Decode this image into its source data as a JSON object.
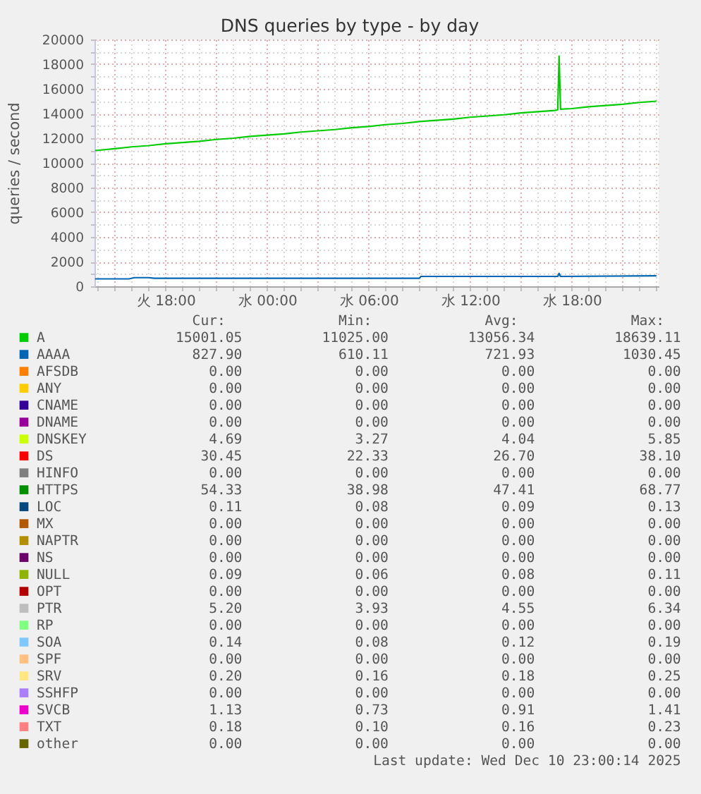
{
  "chart_data": [
    {
      "type": "line",
      "title": "DNS queries by type - by day",
      "ylabel": "queries / second",
      "xlim": [
        "2025-12-09T13:48",
        "2025-12-10T23:08"
      ],
      "xticks": [
        {
          "value": "2025-12-09T14:00",
          "label": null
        },
        {
          "value": "2025-12-09T15:00",
          "label": null
        },
        {
          "value": "2025-12-09T16:00",
          "label": null
        },
        {
          "value": "2025-12-09T17:00",
          "label": null
        },
        {
          "value": "2025-12-09T18:00",
          "label": "火 18:00"
        },
        {
          "value": "2025-12-09T19:00",
          "label": null
        },
        {
          "value": "2025-12-09T20:00",
          "label": null
        },
        {
          "value": "2025-12-09T21:00",
          "label": null
        },
        {
          "value": "2025-12-09T22:00",
          "label": null
        },
        {
          "value": "2025-12-09T23:00",
          "label": null
        },
        {
          "value": "2025-12-10T00:00",
          "label": "水 00:00"
        },
        {
          "value": "2025-12-10T01:00",
          "label": null
        },
        {
          "value": "2025-12-10T02:00",
          "label": null
        },
        {
          "value": "2025-12-10T03:00",
          "label": null
        },
        {
          "value": "2025-12-10T04:00",
          "label": null
        },
        {
          "value": "2025-12-10T05:00",
          "label": null
        },
        {
          "value": "2025-12-10T06:00",
          "label": "水 06:00"
        },
        {
          "value": "2025-12-10T07:00",
          "label": null
        },
        {
          "value": "2025-12-10T08:00",
          "label": null
        },
        {
          "value": "2025-12-10T09:00",
          "label": null
        },
        {
          "value": "2025-12-10T10:00",
          "label": null
        },
        {
          "value": "2025-12-10T11:00",
          "label": null
        },
        {
          "value": "2025-12-10T12:00",
          "label": "水 12:00"
        },
        {
          "value": "2025-12-10T13:00",
          "label": null
        },
        {
          "value": "2025-12-10T14:00",
          "label": null
        },
        {
          "value": "2025-12-10T15:00",
          "label": null
        },
        {
          "value": "2025-12-10T16:00",
          "label": null
        },
        {
          "value": "2025-12-10T17:00",
          "label": null
        },
        {
          "value": "2025-12-10T18:00",
          "label": "水 18:00"
        },
        {
          "value": "2025-12-10T19:00",
          "label": null
        },
        {
          "value": "2025-12-10T20:00",
          "label": null
        },
        {
          "value": "2025-12-10T21:00",
          "label": null
        },
        {
          "value": "2025-12-10T22:00",
          "label": null
        },
        {
          "value": "2025-12-10T23:00",
          "label": null
        }
      ],
      "ylim": [
        0,
        20000
      ],
      "yticks": [
        0,
        {
          "value": 1000,
          "label": null
        },
        2000,
        {
          "value": 3000,
          "label": null
        },
        4000,
        {
          "value": 5000,
          "label": null
        },
        6000,
        {
          "value": 7000,
          "label": null
        },
        8000,
        {
          "value": 9000,
          "label": null
        },
        10000,
        {
          "value": 11000,
          "label": null
        },
        12000,
        {
          "value": 13000,
          "label": null
        },
        14000,
        {
          "value": 15000,
          "label": null
        },
        16000,
        {
          "value": 17000,
          "label": null
        },
        18000,
        {
          "value": 19000,
          "label": null
        },
        20000
      ],
      "grid": true,
      "legend": "bottom",
      "series": [
        {
          "name": "A",
          "color": "#00cc00",
          "x": [
            "2025-12-09T13:50",
            "2025-12-09T15:00",
            "2025-12-09T16:00",
            "2025-12-09T17:00",
            "2025-12-09T18:00",
            "2025-12-09T19:00",
            "2025-12-09T20:00",
            "2025-12-09T21:00",
            "2025-12-09T22:00",
            "2025-12-09T23:00",
            "2025-12-10T00:00",
            "2025-12-10T01:00",
            "2025-12-10T02:00",
            "2025-12-10T03:00",
            "2025-12-10T04:00",
            "2025-12-10T05:00",
            "2025-12-10T06:00",
            "2025-12-10T07:00",
            "2025-12-10T08:00",
            "2025-12-10T09:00",
            "2025-12-10T10:00",
            "2025-12-10T11:00",
            "2025-12-10T12:00",
            "2025-12-10T13:00",
            "2025-12-10T14:00",
            "2025-12-10T15:00",
            "2025-12-10T16:00",
            "2025-12-10T17:00",
            "2025-12-10T17:10",
            "2025-12-10T17:15",
            "2025-12-10T17:20",
            "2025-12-10T18:00",
            "2025-12-10T19:00",
            "2025-12-10T20:00",
            "2025-12-10T21:00",
            "2025-12-10T22:00",
            "2025-12-10T23:00"
          ],
          "values": [
            11000,
            11150,
            11300,
            11400,
            11550,
            11650,
            11750,
            11900,
            12000,
            12150,
            12250,
            12350,
            12500,
            12600,
            12700,
            12850,
            12950,
            13100,
            13200,
            13350,
            13450,
            13550,
            13700,
            13800,
            13900,
            14050,
            14150,
            14250,
            14300,
            18650,
            14350,
            14400,
            14550,
            14650,
            14750,
            14900,
            15000
          ]
        },
        {
          "name": "AAAA",
          "color": "#0066b3",
          "x": [
            "2025-12-09T13:50",
            "2025-12-09T15:50",
            "2025-12-09T16:10",
            "2025-12-09T17:00",
            "2025-12-09T17:20",
            "2025-12-10T09:00",
            "2025-12-10T09:05",
            "2025-12-10T17:10",
            "2025-12-10T17:15",
            "2025-12-10T17:20",
            "2025-12-10T23:00"
          ],
          "values": [
            600,
            600,
            700,
            700,
            650,
            650,
            800,
            800,
            1050,
            800,
            850
          ]
        },
        {
          "name": "AFSDB",
          "color": "#ff8000",
          "values": [
            null
          ]
        },
        {
          "name": "ANY",
          "color": "#ffcc00",
          "values": [
            null
          ]
        },
        {
          "name": "CNAME",
          "color": "#330099",
          "values": [
            null
          ]
        },
        {
          "name": "DNAME",
          "color": "#990099",
          "values": [
            null
          ]
        },
        {
          "name": "DNSKEY",
          "color": "#ccff00",
          "values": [
            null
          ]
        },
        {
          "name": "DS",
          "color": "#ff0000",
          "values": [
            null
          ]
        },
        {
          "name": "HINFO",
          "color": "#808080",
          "values": [
            null
          ]
        },
        {
          "name": "HTTPS",
          "color": "#008f00",
          "values": [
            null
          ]
        },
        {
          "name": "LOC",
          "color": "#00487d",
          "values": [
            null
          ]
        },
        {
          "name": "MX",
          "color": "#b35a00",
          "values": [
            null
          ]
        },
        {
          "name": "NAPTR",
          "color": "#b38f00",
          "values": [
            null
          ]
        },
        {
          "name": "NS",
          "color": "#6b006b",
          "values": [
            null
          ]
        },
        {
          "name": "NULL",
          "color": "#8fb300",
          "values": [
            null
          ]
        },
        {
          "name": "OPT",
          "color": "#b30000",
          "values": [
            null
          ]
        },
        {
          "name": "PTR",
          "color": "#bebebe",
          "values": [
            null
          ]
        },
        {
          "name": "RP",
          "color": "#80ff80",
          "values": [
            null
          ]
        },
        {
          "name": "SOA",
          "color": "#80c9ff",
          "values": [
            null
          ]
        },
        {
          "name": "SPF",
          "color": "#ffc080",
          "values": [
            null
          ]
        },
        {
          "name": "SRV",
          "color": "#ffe680",
          "values": [
            null
          ]
        },
        {
          "name": "SSHFP",
          "color": "#aa80ff",
          "values": [
            null
          ]
        },
        {
          "name": "SVCB",
          "color": "#ee00cc",
          "values": [
            null
          ]
        },
        {
          "name": "TXT",
          "color": "#ff8080",
          "values": [
            null
          ]
        },
        {
          "name": "other",
          "color": "#666600",
          "values": [
            null
          ]
        }
      ]
    },
    {
      "type": "other",
      "cell_labels": [
        [
          "15001.05",
          "11025.00",
          "13056.34",
          "18639.11"
        ],
        [
          "827.90",
          "610.11",
          "721.93",
          "1030.45"
        ],
        [
          "0.00",
          "0.00",
          "0.00",
          "0.00"
        ],
        [
          "0.00",
          "0.00",
          "0.00",
          "0.00"
        ],
        [
          "0.00",
          "0.00",
          "0.00",
          "0.00"
        ],
        [
          "0.00",
          "0.00",
          "0.00",
          "0.00"
        ],
        [
          "4.69",
          "3.27",
          "4.04",
          "5.85"
        ],
        [
          "30.45",
          "22.33",
          "26.70",
          "38.10"
        ],
        [
          "0.00",
          "0.00",
          "0.00",
          "0.00"
        ],
        [
          "54.33",
          "38.98",
          "47.41",
          "68.77"
        ],
        [
          "0.11",
          "0.08",
          "0.09",
          "0.13"
        ],
        [
          "0.00",
          "0.00",
          "0.00",
          "0.00"
        ],
        [
          "0.00",
          "0.00",
          "0.00",
          "0.00"
        ],
        [
          "0.00",
          "0.00",
          "0.00",
          "0.00"
        ],
        [
          "0.09",
          "0.06",
          "0.08",
          "0.11"
        ],
        [
          "0.00",
          "0.00",
          "0.00",
          "0.00"
        ],
        [
          "5.20",
          "3.93",
          "4.55",
          "6.34"
        ],
        [
          "0.00",
          "0.00",
          "0.00",
          "0.00"
        ],
        [
          "0.14",
          "0.08",
          "0.12",
          "0.19"
        ],
        [
          "0.00",
          "0.00",
          "0.00",
          "0.00"
        ],
        [
          "0.20",
          "0.16",
          "0.18",
          "0.25"
        ],
        [
          "0.00",
          "0.00",
          "0.00",
          "0.00"
        ],
        [
          "1.13",
          "0.73",
          "0.91",
          "1.41"
        ],
        [
          "0.18",
          "0.10",
          "0.16",
          "0.23"
        ],
        [
          "0.00",
          "0.00",
          "0.00",
          "0.00"
        ]
      ],
      "annotations": [
        "Cur:",
        "Min:",
        "Avg:",
        "Max:",
        "Last update: Wed Dec 10 23:00:14 2025"
      ]
    }
  ]
}
